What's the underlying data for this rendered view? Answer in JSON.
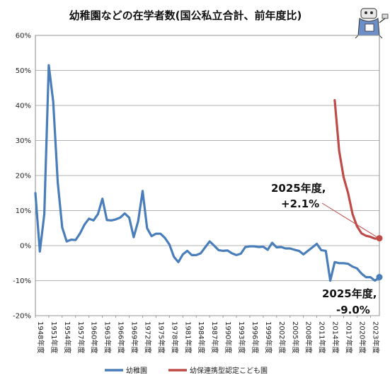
{
  "chart_data": {
    "type": "line",
    "title": "幼稚園などの在学者数(国公私立合計、前年度比)",
    "xlabel": "",
    "ylabel": "",
    "ylim": [
      -0.2,
      0.6
    ],
    "yticks": [
      -0.2,
      -0.1,
      0,
      0.1,
      0.2,
      0.3,
      0.4,
      0.5,
      0.6
    ],
    "ytick_labels": [
      "-20%",
      "-10%",
      "0%",
      "10%",
      "20%",
      "30%",
      "40%",
      "50%",
      "60%"
    ],
    "xlim": [
      1948,
      2025
    ],
    "xticks": [
      1948,
      1951,
      1954,
      1957,
      1960,
      1963,
      1966,
      1969,
      1972,
      1975,
      1978,
      1981,
      1984,
      1987,
      1990,
      1993,
      1996,
      1999,
      2002,
      2005,
      2008,
      2011,
      2014,
      2017,
      2020,
      2023
    ],
    "xtick_labels": [
      "1948年度",
      "1951年度",
      "1954年度",
      "1957年度",
      "1960年度",
      "1963年度",
      "1966年度",
      "1969年度",
      "1972年度",
      "1975年度",
      "1978年度",
      "1981年度",
      "1984年度",
      "1987年度",
      "1990年度",
      "1993年度",
      "1996年度",
      "1999年度",
      "2002年度",
      "2005年度",
      "2008年度",
      "2011年度",
      "2014年度",
      "2017年度",
      "2020年度",
      "2023年度"
    ],
    "grid": "horizontal",
    "legend_position": "bottom",
    "series": [
      {
        "name": "幼稚園",
        "color": "#4a7ebb",
        "x": [
          1948,
          1949,
          1950,
          1951,
          1952,
          1953,
          1954,
          1955,
          1956,
          1957,
          1958,
          1959,
          1960,
          1961,
          1962,
          1963,
          1964,
          1965,
          1966,
          1967,
          1968,
          1969,
          1970,
          1971,
          1972,
          1973,
          1974,
          1975,
          1976,
          1977,
          1978,
          1979,
          1980,
          1981,
          1982,
          1983,
          1984,
          1985,
          1986,
          1987,
          1988,
          1989,
          1990,
          1991,
          1992,
          1993,
          1994,
          1995,
          1996,
          1997,
          1998,
          1999,
          2000,
          2001,
          2002,
          2003,
          2004,
          2005,
          2006,
          2007,
          2008,
          2009,
          2010,
          2011,
          2012,
          2013,
          2014,
          2015,
          2016,
          2017,
          2018,
          2019,
          2020,
          2021,
          2022,
          2023,
          2024,
          2025
        ],
        "values": [
          0.15,
          -0.017,
          0.09,
          0.515,
          0.41,
          0.18,
          0.052,
          0.012,
          0.017,
          0.016,
          0.035,
          0.06,
          0.077,
          0.072,
          0.09,
          0.134,
          0.073,
          0.072,
          0.075,
          0.08,
          0.092,
          0.08,
          0.024,
          0.07,
          0.156,
          0.05,
          0.027,
          0.034,
          0.034,
          0.022,
          0.003,
          -0.032,
          -0.047,
          -0.025,
          -0.015,
          -0.027,
          -0.027,
          -0.022,
          -0.005,
          0.012,
          0.0,
          -0.013,
          -0.015,
          -0.014,
          -0.022,
          -0.027,
          -0.023,
          -0.004,
          -0.002,
          -0.002,
          -0.004,
          -0.003,
          -0.012,
          0.008,
          -0.005,
          -0.004,
          -0.008,
          -0.008,
          -0.012,
          -0.015,
          -0.025,
          -0.015,
          -0.005,
          0.005,
          -0.013,
          -0.015,
          -0.1,
          -0.047,
          -0.05,
          -0.05,
          -0.052,
          -0.06,
          -0.065,
          -0.08,
          -0.09,
          -0.09,
          -0.1,
          -0.09
        ]
      },
      {
        "name": "幼保連携型認定こども園",
        "color": "#be4b48",
        "x": [
          2015,
          2016,
          2017,
          2018,
          2019,
          2020,
          2021,
          2022,
          2023,
          2024,
          2025
        ],
        "values": [
          0.415,
          0.27,
          0.195,
          0.15,
          0.09,
          0.055,
          0.035,
          0.028,
          0.025,
          0.02,
          0.021
        ]
      }
    ],
    "annotations": [
      {
        "line1": "2025年度,",
        "line2": "+2.1%"
      },
      {
        "line1": "2025年度,",
        "line2": "-9.0%"
      }
    ]
  }
}
